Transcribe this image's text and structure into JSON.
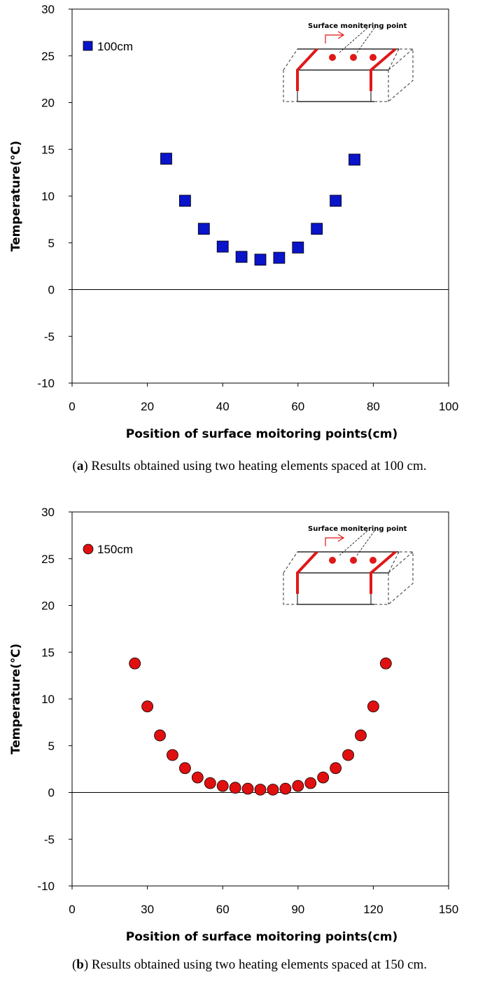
{
  "chart_data": [
    {
      "type": "scatter",
      "xlabel": "Position of surface moitoring points(cm)",
      "ylabel": "Temperature(℃)",
      "xlim": [
        0,
        100
      ],
      "ylim": [
        -10,
        30
      ],
      "xticks": [
        "0",
        "20",
        "40",
        "60",
        "80",
        "100"
      ],
      "yticks": [
        "-10",
        "-5",
        "0",
        "5",
        "10",
        "15",
        "20",
        "25",
        "30"
      ],
      "x_tick_values": [
        0,
        20,
        40,
        60,
        80,
        100
      ],
      "y_tick_values": [
        -10,
        -5,
        0,
        5,
        10,
        15,
        20,
        25,
        30
      ],
      "grid": false,
      "legend_position": "top-left",
      "inset_label": "Surface monitering point",
      "series": [
        {
          "name": "100cm",
          "marker": "square",
          "color": "#0a14c8",
          "x": [
            25,
            30,
            35,
            40,
            45,
            50,
            55,
            60,
            65,
            70,
            75
          ],
          "y": [
            14.0,
            9.5,
            6.5,
            4.6,
            3.5,
            3.2,
            3.4,
            4.5,
            6.5,
            9.5,
            13.9
          ]
        }
      ],
      "caption_label": "a",
      "caption_text": " Results obtained using two heating elements spaced at 100 cm."
    },
    {
      "type": "scatter",
      "xlabel": "Position of surface moitoring points(cm)",
      "ylabel": "Temperature(℃)",
      "xlim": [
        0,
        150
      ],
      "ylim": [
        -10,
        30
      ],
      "xticks": [
        "0",
        "30",
        "60",
        "90",
        "120",
        "150"
      ],
      "yticks": [
        "-10",
        "-5",
        "0",
        "5",
        "10",
        "15",
        "20",
        "25",
        "30"
      ],
      "x_tick_values": [
        0,
        30,
        60,
        90,
        120,
        150
      ],
      "y_tick_values": [
        -10,
        -5,
        0,
        5,
        10,
        15,
        20,
        25,
        30
      ],
      "grid": false,
      "legend_position": "top-left",
      "inset_label": "Surface monitering point",
      "series": [
        {
          "name": "150cm",
          "marker": "circle",
          "color": "#e01010",
          "x": [
            25,
            30,
            35,
            40,
            45,
            50,
            55,
            60,
            65,
            70,
            75,
            80,
            85,
            90,
            95,
            100,
            105,
            110,
            115,
            120,
            125
          ],
          "y": [
            13.8,
            9.2,
            6.1,
            4.0,
            2.6,
            1.6,
            1.0,
            0.7,
            0.5,
            0.4,
            0.3,
            0.3,
            0.4,
            0.7,
            1.0,
            1.6,
            2.6,
            4.0,
            6.1,
            9.2,
            13.8
          ]
        }
      ],
      "caption_label": "b",
      "caption_text": " Results obtained using two heating elements spaced at 150 cm."
    }
  ],
  "colors": {
    "square_fill": "#0a14c8",
    "circle_fill": "#e01010",
    "heater_red": "#e01818"
  }
}
